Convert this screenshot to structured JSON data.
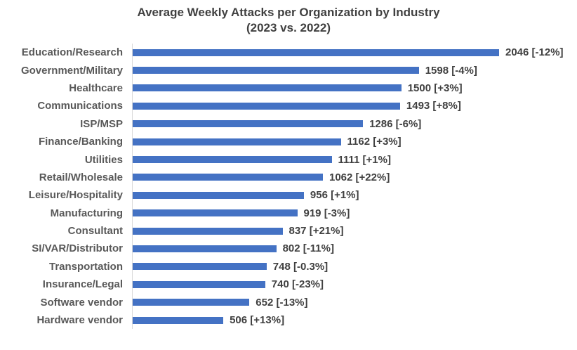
{
  "chart_data": {
    "type": "bar",
    "orientation": "horizontal",
    "title": "Average Weekly Attacks per Organization by Industry",
    "subtitle": "(2023 vs. 2022)",
    "bar_color": "#4472C4",
    "axis_line_color": "#d9d9d9",
    "xlim": [
      0,
      2046
    ],
    "legend": "none",
    "grid": "off",
    "value_label_format": "value [yoy_change]",
    "rows": [
      {
        "category": "Education/Research",
        "value": 2046,
        "change": "-12%",
        "label": "2046 [-12%]"
      },
      {
        "category": "Government/Military",
        "value": 1598,
        "change": "-4%",
        "label": "1598 [-4%]"
      },
      {
        "category": "Healthcare",
        "value": 1500,
        "change": "+3%",
        "label": "1500 [+3%]"
      },
      {
        "category": "Communications",
        "value": 1493,
        "change": "+8%",
        "label": "1493 [+8%]"
      },
      {
        "category": "ISP/MSP",
        "value": 1286,
        "change": "-6%",
        "label": "1286 [-6%]"
      },
      {
        "category": "Finance/Banking",
        "value": 1162,
        "change": "+3%",
        "label": "1162 [+3%]"
      },
      {
        "category": "Utilities",
        "value": 1111,
        "change": "+1%",
        "label": "1111 [+1%]"
      },
      {
        "category": "Retail/Wholesale",
        "value": 1062,
        "change": "+22%",
        "label": "1062 [+22%]"
      },
      {
        "category": "Leisure/Hospitality",
        "value": 956,
        "change": "+1%",
        "label": "956 [+1%]"
      },
      {
        "category": "Manufacturing",
        "value": 919,
        "change": "-3%",
        "label": "919 [-3%]"
      },
      {
        "category": "Consultant",
        "value": 837,
        "change": "+21%",
        "label": "837 [+21%]"
      },
      {
        "category": "SI/VAR/Distributor",
        "value": 802,
        "change": "-11%",
        "label": "802 [-11%]"
      },
      {
        "category": "Transportation",
        "value": 748,
        "change": "-0.3%",
        "label": "748 [-0.3%]"
      },
      {
        "category": "Insurance/Legal",
        "value": 740,
        "change": "-23%",
        "label": "740 [-23%]"
      },
      {
        "category": "Software vendor",
        "value": 652,
        "change": "-13%",
        "label": "652 [-13%]"
      },
      {
        "category": "Hardware vendor",
        "value": 506,
        "change": "+13%",
        "label": "506 [+13%]"
      }
    ]
  }
}
